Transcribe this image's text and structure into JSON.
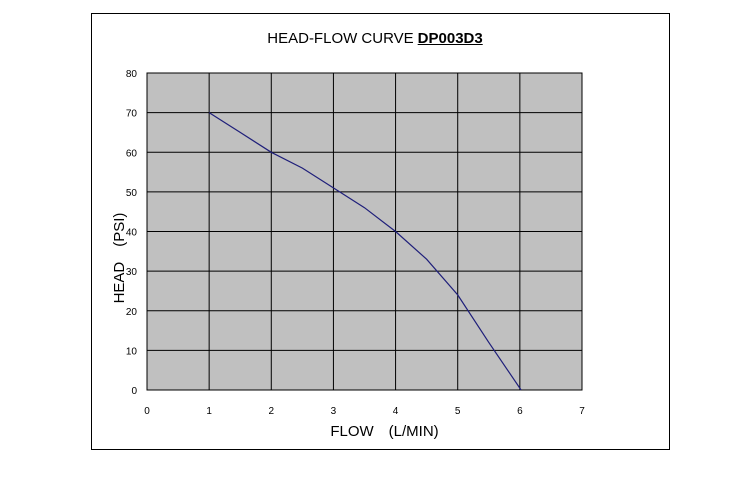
{
  "chart_data": {
    "type": "line",
    "title": "HEAD-FLOW CURVE",
    "model": "DP003D3",
    "xlabel": "FLOW　(L/MIN)",
    "ylabel": "HEAD　(PSI)",
    "xlim": [
      0,
      7
    ],
    "ylim": [
      0,
      80
    ],
    "x_ticks": [
      "0",
      "1",
      "2",
      "3",
      "4",
      "5",
      "6",
      "7"
    ],
    "y_ticks": [
      "0",
      "10",
      "20",
      "30",
      "40",
      "50",
      "60",
      "70",
      "80"
    ],
    "grid": true,
    "plot_background": "#c0c0c0",
    "grid_color": "#000000",
    "series": [
      {
        "color": "#1f1f7a",
        "x": [
          1.0,
          1.5,
          2.0,
          2.5,
          3.0,
          3.5,
          4.0,
          4.5,
          5.0,
          5.5,
          6.02
        ],
        "y": [
          70,
          65,
          60,
          56,
          51,
          46,
          40,
          33,
          24,
          12,
          0
        ]
      }
    ]
  }
}
